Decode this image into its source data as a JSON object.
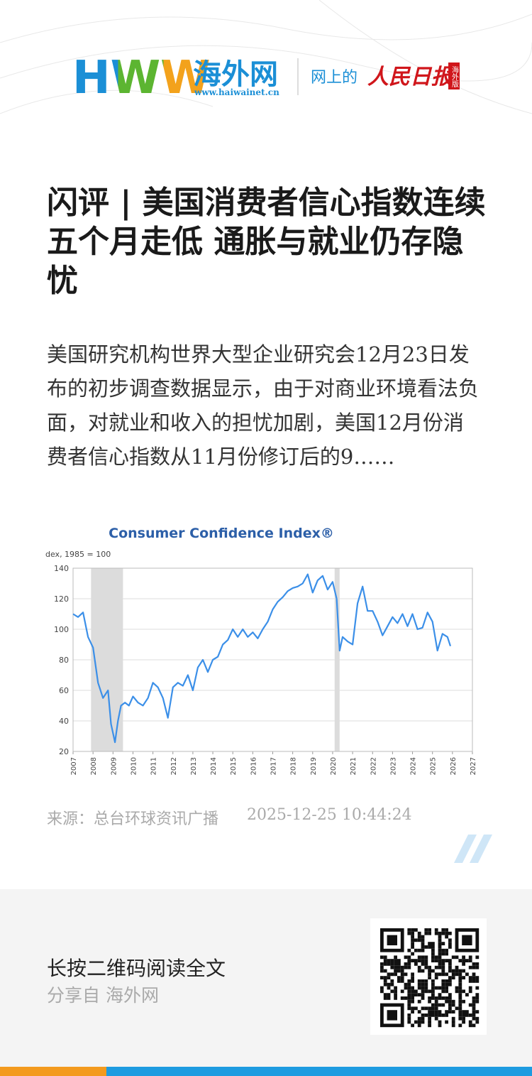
{
  "header": {
    "logo": "HWW",
    "site_name": "海外网",
    "url": "www.haiwainet.cn",
    "slogan": "网上的",
    "paper": "人民日报",
    "edition": "海外版"
  },
  "article": {
    "title": "闪评 | 美国消费者信心指数连续五个月走低 通胀与就业仍存隐忧",
    "summary": "美国研究机构世界大型企业研究会12月23日发布的初步调查数据显示，由于对商业环境看法负面，对就业和收入的担忧加剧，美国12月份消费者信心指数从11月份修订后的9……",
    "source": "来源：总台环球资讯广播",
    "time": "2025-12-25 10:44:24"
  },
  "chart_data": {
    "type": "line",
    "title": "Consumer Confidence Index®",
    "y_label": "dex, 1985 = 100",
    "x": [
      2007.0,
      2007.25,
      2007.5,
      2007.75,
      2008.0,
      2008.25,
      2008.5,
      2008.75,
      2008.9,
      2009.1,
      2009.25,
      2009.4,
      2009.6,
      2009.8,
      2010.0,
      2010.25,
      2010.5,
      2010.75,
      2011.0,
      2011.25,
      2011.5,
      2011.75,
      2012.0,
      2012.25,
      2012.5,
      2012.75,
      2013.0,
      2013.25,
      2013.5,
      2013.75,
      2014.0,
      2014.25,
      2014.5,
      2014.75,
      2015.0,
      2015.25,
      2015.5,
      2015.75,
      2016.0,
      2016.25,
      2016.5,
      2016.75,
      2017.0,
      2017.25,
      2017.5,
      2017.75,
      2018.0,
      2018.25,
      2018.5,
      2018.75,
      2019.0,
      2019.25,
      2019.5,
      2019.75,
      2020.0,
      2020.2,
      2020.35,
      2020.5,
      2020.75,
      2021.0,
      2021.25,
      2021.5,
      2021.75,
      2022.0,
      2022.25,
      2022.5,
      2022.75,
      2023.0,
      2023.25,
      2023.5,
      2023.75,
      2024.0,
      2024.25,
      2024.5,
      2024.75,
      2025.0,
      2025.25,
      2025.5,
      2025.75,
      2025.9
    ],
    "series": [
      {
        "color": "#3b8fe8",
        "values": [
          110,
          108,
          111,
          95,
          88,
          65,
          55,
          60,
          38,
          26,
          40,
          50,
          52,
          50,
          56,
          52,
          50,
          55,
          65,
          62,
          55,
          42,
          62,
          65,
          63,
          70,
          60,
          75,
          80,
          72,
          80,
          82,
          90,
          93,
          100,
          95,
          100,
          95,
          98,
          94,
          100,
          105,
          113,
          118,
          121,
          125,
          127,
          128,
          130,
          136,
          124,
          132,
          135,
          126,
          131,
          120,
          86,
          95,
          92,
          90,
          117,
          128,
          112,
          112,
          105,
          96,
          102,
          108,
          104,
          110,
          102,
          110,
          100,
          101,
          111,
          105,
          86,
          97,
          95,
          89
        ]
      }
    ],
    "recessions": [
      [
        2007.9,
        2009.5
      ],
      [
        2020.1,
        2020.35
      ]
    ],
    "recession_color": "#dcdcdc",
    "xlim": [
      2007,
      2027
    ],
    "xticks": [
      2007,
      2008,
      2009,
      2010,
      2011,
      2012,
      2013,
      2014,
      2015,
      2016,
      2017,
      2018,
      2019,
      2020,
      2021,
      2022,
      2023,
      2024,
      2025,
      2026,
      2027
    ],
    "ylim": [
      20,
      140
    ],
    "yticks": [
      20,
      40,
      60,
      80,
      100,
      120,
      140
    ],
    "grid": true
  },
  "footer": {
    "cta": "长按二维码阅读全文",
    "share": "分享自 海外网"
  }
}
